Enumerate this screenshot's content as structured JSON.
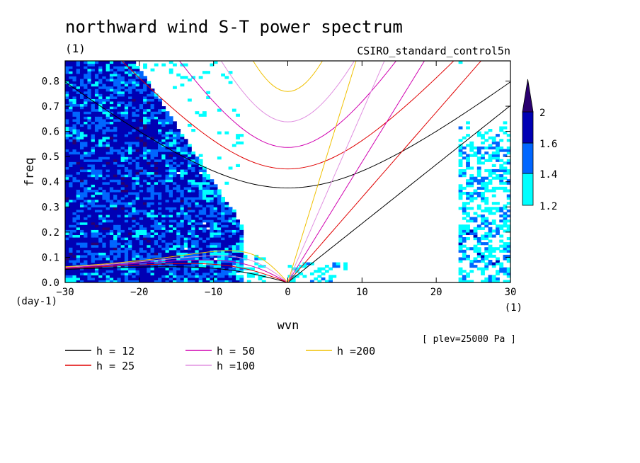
{
  "chart_data": {
    "type": "heatmap",
    "title": "northward wind S-T power spectrum",
    "unit_label": "(1)",
    "dataset": "CSIRO_standard_control5n",
    "xlabel": "wvn",
    "ylabel": "freq",
    "x_unit": "(1)",
    "y_unit": "(day-1)",
    "level_note": "[ plev=25000 Pa ]",
    "xlim": [
      -30,
      30
    ],
    "ylim": [
      0,
      0.88
    ],
    "x_ticks": [
      -30,
      -20,
      -10,
      0,
      10,
      20,
      30
    ],
    "y_ticks": [
      0.0,
      0.1,
      0.2,
      0.3,
      0.4,
      0.5,
      0.6,
      0.7,
      0.8
    ],
    "colorbar": {
      "levels": [
        1.2,
        1.4,
        1.6,
        2
      ],
      "colors": [
        "#00ffff",
        "#0066ff",
        "#0000b4",
        "#2a0070"
      ]
    },
    "legend": [
      {
        "label": "h = 12",
        "color": "#000000"
      },
      {
        "label": "h = 25",
        "color": "#e00000"
      },
      {
        "label": "h = 50",
        "color": "#d000b0"
      },
      {
        "label": "h =100",
        "color": "#e090e0"
      },
      {
        "label": "h =200",
        "color": "#f0c000"
      }
    ],
    "dispersion_curves": {
      "equivalent_depths_m": [
        12,
        25,
        50,
        100,
        200
      ],
      "types": [
        "kelvin",
        "rossby_n1",
        "inertio_gravity_n1"
      ]
    }
  }
}
